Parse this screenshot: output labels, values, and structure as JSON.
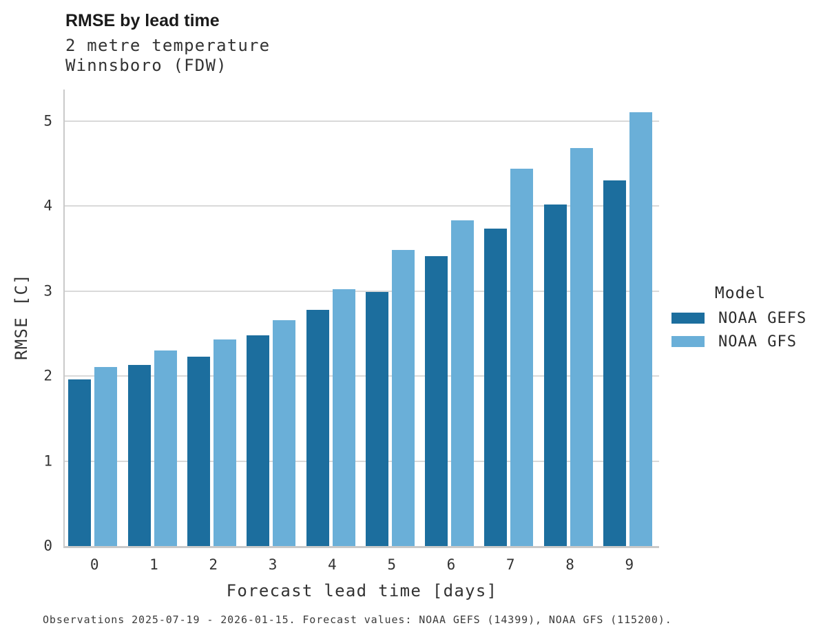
{
  "header": {
    "title": "RMSE by lead time"
  },
  "chart_data": {
    "type": "bar",
    "title": "RMSE by lead time",
    "subtitle_lines": [
      "2 metre temperature",
      "Winnsboro (FDW)"
    ],
    "categories": [
      "0",
      "1",
      "2",
      "3",
      "4",
      "5",
      "6",
      "7",
      "8",
      "9"
    ],
    "series": [
      {
        "name": "NOAA GEFS",
        "color": "#1c6e9e",
        "values": [
          1.96,
          2.13,
          2.23,
          2.48,
          2.78,
          2.99,
          3.41,
          3.73,
          4.02,
          4.3
        ]
      },
      {
        "name": "NOAA GFS",
        "color": "#6aafd8",
        "values": [
          2.11,
          2.3,
          2.43,
          2.66,
          3.02,
          3.48,
          3.83,
          4.44,
          4.68,
          5.1
        ]
      }
    ],
    "xlabel": "Forecast lead time [days]",
    "ylabel": "RMSE [C]",
    "ylim": [
      0,
      5.37
    ],
    "yticks": [
      0,
      1,
      2,
      3,
      4,
      5
    ],
    "grid": true,
    "legend_title": "Model",
    "legend_position": "right"
  },
  "caption": "Observations 2025-07-19 - 2026-01-15. Forecast values: NOAA GEFS (14399), NOAA GFS (115200).",
  "colors": {
    "grid": "#d9d9d9",
    "spine": "#c9c9c9",
    "background": "#ffffff"
  }
}
